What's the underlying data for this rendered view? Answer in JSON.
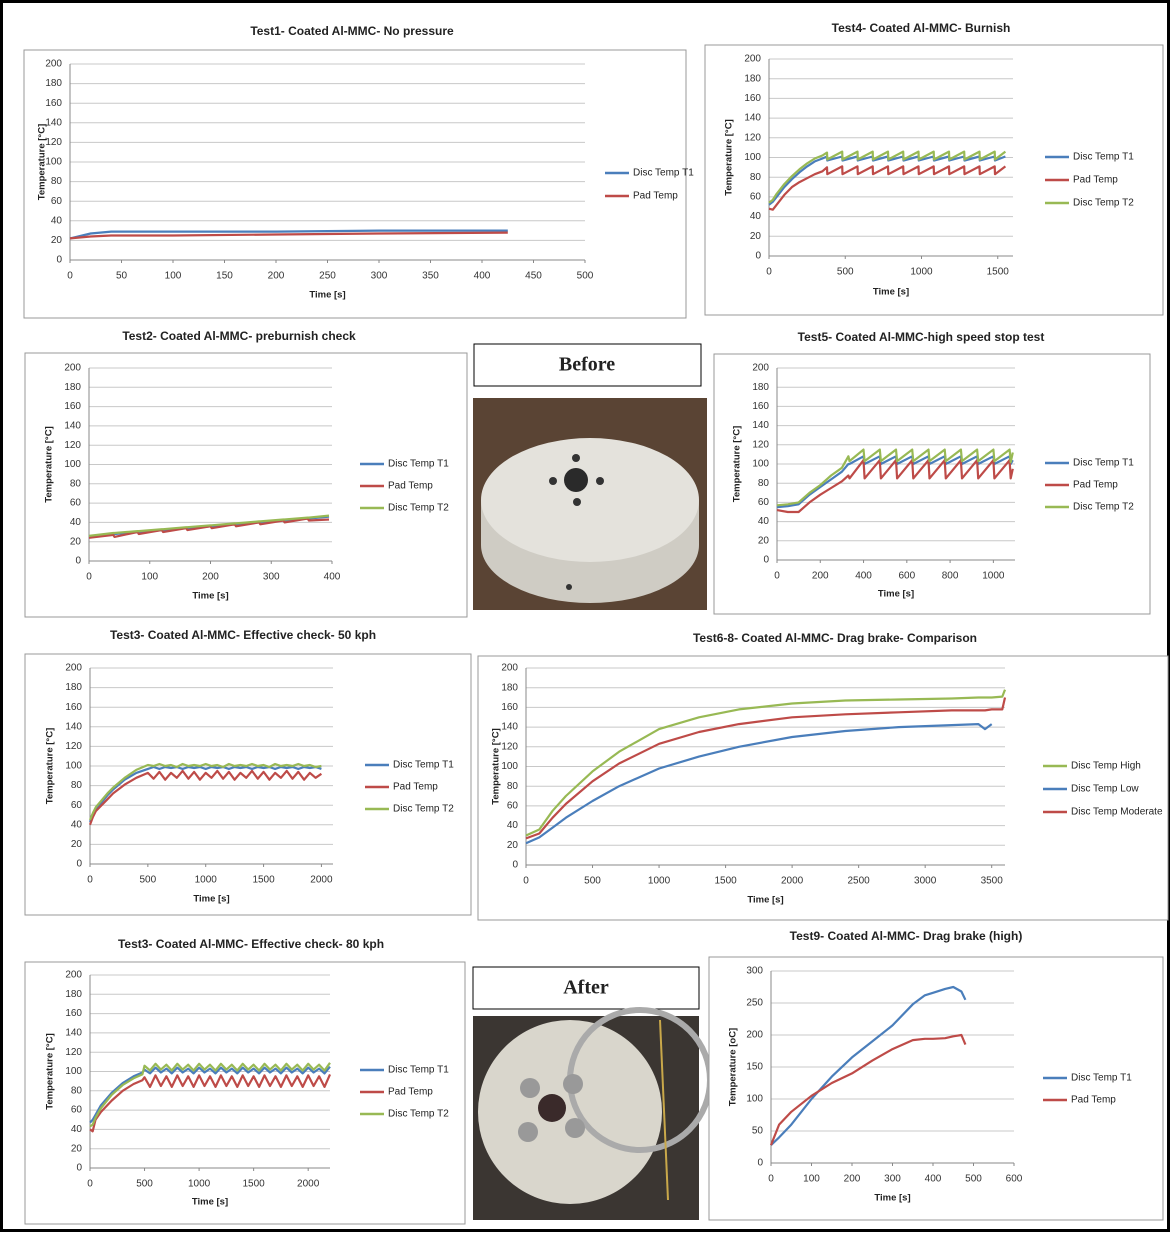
{
  "photos": [
    {
      "label": "Before"
    },
    {
      "label": "After"
    }
  ],
  "chart_data": [
    {
      "type": "line",
      "title": "Test1- Coated Al-MMC- No pressure",
      "x_label": "Time [s]",
      "y_label": "Temperature [°C]",
      "x": [
        0,
        20,
        40,
        100,
        200,
        300,
        425
      ],
      "series": [
        {
          "name": "Disc Temp T1",
          "color": "#4a7ebb",
          "values": [
            22,
            27,
            29,
            29,
            29,
            30,
            30
          ]
        },
        {
          "name": "Pad Temp",
          "color": "#be4b48",
          "values": [
            22,
            24,
            25,
            25,
            26,
            27,
            28
          ]
        }
      ],
      "xlim": [
        0,
        500
      ],
      "xticks": [
        0,
        50,
        100,
        150,
        200,
        250,
        300,
        350,
        400,
        450,
        500
      ],
      "ylim": [
        0,
        200
      ],
      "yticks": [
        0,
        20,
        40,
        60,
        80,
        100,
        120,
        140,
        160,
        180,
        200
      ],
      "grid": true
    },
    {
      "type": "line",
      "title": "Test4- Coated Al-MMC- Burnish",
      "x_label": "Time [s]",
      "y_label": "Temperature [°C]",
      "x": [
        0,
        25,
        50,
        100,
        150,
        200,
        250,
        300,
        350,
        380,
        382,
        480,
        482,
        580,
        582,
        680,
        682,
        780,
        782,
        880,
        882,
        980,
        982,
        1080,
        1082,
        1180,
        1182,
        1280,
        1282,
        1380,
        1382,
        1480,
        1482,
        1550
      ],
      "series": [
        {
          "name": "Disc Temp T1",
          "color": "#4a7ebb",
          "values": [
            52,
            55,
            60,
            70,
            78,
            85,
            91,
            96,
            99,
            101,
            97,
            101,
            97,
            101,
            97,
            101,
            97,
            101,
            97,
            101,
            97,
            101,
            97,
            101,
            97,
            101,
            97,
            101,
            97,
            101,
            97,
            101,
            97,
            101
          ]
        },
        {
          "name": "Pad Temp",
          "color": "#be4b48",
          "values": [
            48,
            47,
            52,
            62,
            70,
            75,
            79,
            83,
            86,
            90,
            83,
            91,
            83,
            91,
            83,
            91,
            83,
            91,
            83,
            91,
            83,
            91,
            83,
            91,
            83,
            91,
            83,
            91,
            83,
            91,
            83,
            91,
            83,
            91
          ]
        },
        {
          "name": "Disc Temp T2",
          "color": "#98b954",
          "values": [
            54,
            57,
            63,
            73,
            81,
            88,
            94,
            99,
            102,
            105,
            98,
            106,
            98,
            106,
            98,
            106,
            98,
            106,
            98,
            106,
            98,
            106,
            98,
            106,
            98,
            106,
            98,
            106,
            98,
            106,
            98,
            106,
            98,
            106
          ]
        }
      ],
      "xlim": [
        0,
        1600
      ],
      "xticks": [
        0,
        500,
        1000,
        1500
      ],
      "ylim": [
        0,
        200
      ],
      "yticks": [
        0,
        20,
        40,
        60,
        80,
        100,
        120,
        140,
        160,
        180,
        200
      ],
      "grid": true
    },
    {
      "type": "line",
      "title": "Test2- Coated Al-MMC- preburnish check",
      "x_label": "Time [s]",
      "y_label": "Temperature [°C]",
      "x": [
        0,
        40,
        42,
        80,
        82,
        120,
        122,
        160,
        162,
        200,
        202,
        240,
        242,
        280,
        282,
        320,
        322,
        360,
        362,
        395
      ],
      "series": [
        {
          "name": "Disc Temp T1",
          "color": "#4a7ebb",
          "values": [
            25,
            28,
            28,
            30,
            30,
            32,
            32,
            34,
            34,
            36,
            36,
            38,
            38,
            40,
            40,
            42,
            42,
            44,
            44,
            46
          ]
        },
        {
          "name": "Pad Temp",
          "color": "#be4b48",
          "values": [
            24,
            27,
            25,
            30,
            28,
            32,
            30,
            34,
            32,
            36,
            34,
            38,
            36,
            40,
            38,
            42,
            40,
            44,
            42,
            43
          ]
        },
        {
          "name": "Disc Temp T2",
          "color": "#98b954",
          "values": [
            26,
            29,
            29,
            31,
            31,
            33,
            33,
            35,
            35,
            37,
            37,
            39,
            39,
            41,
            41,
            43,
            43,
            45,
            45,
            47
          ]
        }
      ],
      "xlim": [
        0,
        400
      ],
      "xticks": [
        0,
        100,
        200,
        300,
        400
      ],
      "ylim": [
        0,
        200
      ],
      "yticks": [
        0,
        20,
        40,
        60,
        80,
        100,
        120,
        140,
        160,
        180,
        200
      ],
      "grid": true
    },
    {
      "type": "line",
      "title": "Test5- Coated Al-MMC-high speed stop test",
      "x_label": "Time [s]",
      "y_label": "Temperature [°C]",
      "x": [
        0,
        50,
        100,
        150,
        200,
        250,
        300,
        330,
        335,
        400,
        405,
        475,
        480,
        550,
        555,
        625,
        630,
        700,
        705,
        775,
        780,
        850,
        855,
        925,
        930,
        1000,
        1005,
        1075,
        1080,
        1090
      ],
      "series": [
        {
          "name": "Disc Temp T1",
          "color": "#4a7ebb",
          "values": [
            55,
            56,
            58,
            68,
            76,
            84,
            92,
            100,
            100,
            108,
            100,
            108,
            100,
            108,
            100,
            108,
            100,
            108,
            100,
            108,
            100,
            108,
            100,
            108,
            100,
            108,
            100,
            108,
            100,
            104
          ]
        },
        {
          "name": "Pad Temp",
          "color": "#be4b48",
          "values": [
            52,
            50,
            50,
            60,
            68,
            75,
            82,
            88,
            85,
            104,
            85,
            104,
            85,
            104,
            85,
            104,
            85,
            104,
            85,
            104,
            85,
            104,
            85,
            104,
            85,
            104,
            85,
            104,
            85,
            95
          ]
        },
        {
          "name": "Disc Temp T2",
          "color": "#98b954",
          "values": [
            57,
            58,
            60,
            70,
            78,
            88,
            96,
            108,
            103,
            115,
            103,
            115,
            103,
            115,
            103,
            115,
            103,
            115,
            103,
            115,
            103,
            115,
            103,
            115,
            103,
            115,
            103,
            115,
            102,
            112
          ]
        }
      ],
      "xlim": [
        0,
        1100
      ],
      "xticks": [
        0,
        200,
        400,
        600,
        800,
        1000
      ],
      "ylim": [
        0,
        200
      ],
      "yticks": [
        0,
        20,
        40,
        60,
        80,
        100,
        120,
        140,
        160,
        180,
        200
      ],
      "grid": true
    },
    {
      "type": "line",
      "title": "Test3- Coated Al-MMC- Effective check- 50 kph",
      "x_label": "Time [s]",
      "y_label": "Temperature [°C]",
      "x": [
        0,
        25,
        50,
        100,
        150,
        200,
        300,
        400,
        500,
        550,
        600,
        650,
        700,
        750,
        800,
        850,
        900,
        950,
        1000,
        1050,
        1100,
        1150,
        1200,
        1250,
        1300,
        1350,
        1400,
        1450,
        1500,
        1550,
        1600,
        1650,
        1700,
        1750,
        1800,
        1850,
        1900,
        1950,
        2000
      ],
      "series": [
        {
          "name": "Disc Temp T1",
          "color": "#4a7ebb",
          "values": [
            43,
            50,
            56,
            63,
            70,
            76,
            86,
            93,
            97,
            99,
            97,
            99,
            98,
            99,
            97,
            99,
            98,
            99,
            97,
            99,
            98,
            99,
            97,
            99,
            98,
            99,
            97,
            99,
            98,
            99,
            97,
            99,
            98,
            99,
            97,
            99,
            98,
            99,
            97
          ]
        },
        {
          "name": "Pad Temp",
          "color": "#be4b48",
          "values": [
            40,
            48,
            54,
            60,
            66,
            72,
            81,
            88,
            93,
            87,
            94,
            86,
            93,
            88,
            95,
            87,
            94,
            86,
            93,
            88,
            95,
            87,
            94,
            86,
            93,
            88,
            95,
            87,
            94,
            86,
            93,
            88,
            95,
            87,
            94,
            86,
            93,
            88,
            92
          ]
        },
        {
          "name": "Disc Temp T2",
          "color": "#98b954",
          "values": [
            45,
            52,
            58,
            65,
            72,
            78,
            88,
            96,
            101,
            100,
            102,
            100,
            101,
            99,
            102,
            100,
            101,
            100,
            102,
            100,
            101,
            99,
            102,
            100,
            101,
            100,
            102,
            100,
            101,
            99,
            102,
            100,
            101,
            100,
            102,
            100,
            101,
            99,
            100
          ]
        }
      ],
      "xlim": [
        0,
        2100
      ],
      "xticks": [
        0,
        500,
        1000,
        1500,
        2000
      ],
      "ylim": [
        0,
        200
      ],
      "yticks": [
        0,
        20,
        40,
        60,
        80,
        100,
        120,
        140,
        160,
        180,
        200
      ],
      "grid": true
    },
    {
      "type": "line",
      "title": "Test6-8- Coated Al-MMC- Drag brake- Comparison",
      "x_label": "Time [s]",
      "y_label": "Temperature [°C]",
      "x": [
        0,
        100,
        200,
        300,
        500,
        700,
        1000,
        1300,
        1600,
        2000,
        2400,
        2800,
        3200,
        3400,
        3450,
        3500,
        3580,
        3600
      ],
      "series": [
        {
          "name": "Disc Temp High",
          "color": "#98b954",
          "values": [
            30,
            36,
            55,
            70,
            95,
            115,
            138,
            150,
            158,
            164,
            167,
            168,
            169,
            170,
            170,
            170,
            171,
            178
          ]
        },
        {
          "name": "Disc Temp Low",
          "color": "#4a7ebb",
          "values": [
            22,
            28,
            38,
            48,
            65,
            80,
            98,
            110,
            120,
            130,
            136,
            140,
            142,
            143,
            138,
            143,
            null,
            null
          ]
        },
        {
          "name": "Disc Temp Moderate",
          "color": "#be4b48",
          "values": [
            27,
            32,
            48,
            62,
            85,
            103,
            123,
            135,
            143,
            150,
            153,
            155,
            157,
            157,
            157,
            158,
            158,
            170
          ]
        }
      ],
      "xlim": [
        0,
        3600
      ],
      "xticks": [
        0,
        500,
        1000,
        1500,
        2000,
        2500,
        3000,
        3500
      ],
      "ylim": [
        0,
        200
      ],
      "yticks": [
        0,
        20,
        40,
        60,
        80,
        100,
        120,
        140,
        160,
        180,
        200
      ],
      "grid": true
    },
    {
      "type": "line",
      "title": "Test3- Coated Al-MMC- Effective check- 80 kph",
      "x_label": "Time [s]",
      "y_label": "Temperature [°C]",
      "x": [
        0,
        25,
        50,
        100,
        200,
        300,
        400,
        480,
        500,
        550,
        600,
        650,
        700,
        750,
        800,
        850,
        900,
        950,
        1000,
        1050,
        1100,
        1150,
        1200,
        1250,
        1300,
        1350,
        1400,
        1450,
        1500,
        1550,
        1600,
        1650,
        1700,
        1750,
        1800,
        1850,
        1900,
        1950,
        2000,
        2050,
        2100,
        2150,
        2200
      ],
      "series": [
        {
          "name": "Disc Temp T1",
          "color": "#4a7ebb",
          "values": [
            47,
            50,
            55,
            65,
            78,
            88,
            95,
            99,
            102,
            98,
            104,
            99,
            103,
            98,
            104,
            99,
            103,
            98,
            104,
            99,
            103,
            98,
            104,
            99,
            103,
            98,
            104,
            99,
            103,
            98,
            104,
            99,
            103,
            98,
            104,
            99,
            103,
            98,
            104,
            99,
            103,
            98,
            105
          ]
        },
        {
          "name": "Pad Temp",
          "color": "#be4b48",
          "values": [
            40,
            38,
            50,
            58,
            70,
            80,
            87,
            91,
            94,
            84,
            96,
            85,
            95,
            84,
            96,
            85,
            95,
            84,
            96,
            85,
            95,
            84,
            96,
            85,
            95,
            84,
            96,
            85,
            95,
            84,
            96,
            85,
            95,
            84,
            96,
            85,
            95,
            84,
            96,
            85,
            95,
            84,
            97
          ]
        },
        {
          "name": "Disc Temp T2",
          "color": "#98b954",
          "values": [
            43,
            45,
            52,
            62,
            76,
            86,
            93,
            97,
            106,
            101,
            108,
            102,
            107,
            101,
            108,
            102,
            107,
            101,
            108,
            102,
            107,
            101,
            108,
            102,
            107,
            101,
            108,
            102,
            107,
            101,
            108,
            102,
            107,
            101,
            108,
            102,
            107,
            101,
            108,
            102,
            107,
            101,
            109
          ]
        }
      ],
      "xlim": [
        0,
        2200
      ],
      "xticks": [
        0,
        500,
        1000,
        1500,
        2000
      ],
      "ylim": [
        0,
        200
      ],
      "yticks": [
        0,
        20,
        40,
        60,
        80,
        100,
        120,
        140,
        160,
        180,
        200
      ],
      "grid": true
    },
    {
      "type": "line",
      "title": "Test9- Coated Al-MMC- Drag brake (high)",
      "x_label": "Time [s]",
      "y_label": "Temperature [oC]",
      "x": [
        0,
        20,
        50,
        100,
        150,
        200,
        250,
        300,
        350,
        380,
        400,
        430,
        450,
        470,
        480
      ],
      "series": [
        {
          "name": "Disc Temp T1",
          "color": "#4a7ebb",
          "values": [
            28,
            40,
            60,
            100,
            135,
            165,
            190,
            215,
            248,
            262,
            266,
            272,
            275,
            268,
            255
          ]
        },
        {
          "name": "Pad Temp",
          "color": "#be4b48",
          "values": [
            28,
            60,
            80,
            105,
            125,
            140,
            160,
            178,
            192,
            194,
            194,
            195,
            198,
            200,
            185
          ]
        }
      ],
      "xlim": [
        0,
        600
      ],
      "xticks": [
        0,
        100,
        200,
        300,
        400,
        500,
        600
      ],
      "ylim": [
        0,
        300
      ],
      "yticks": [
        0,
        50,
        100,
        150,
        200,
        250,
        300
      ],
      "grid": true
    }
  ]
}
